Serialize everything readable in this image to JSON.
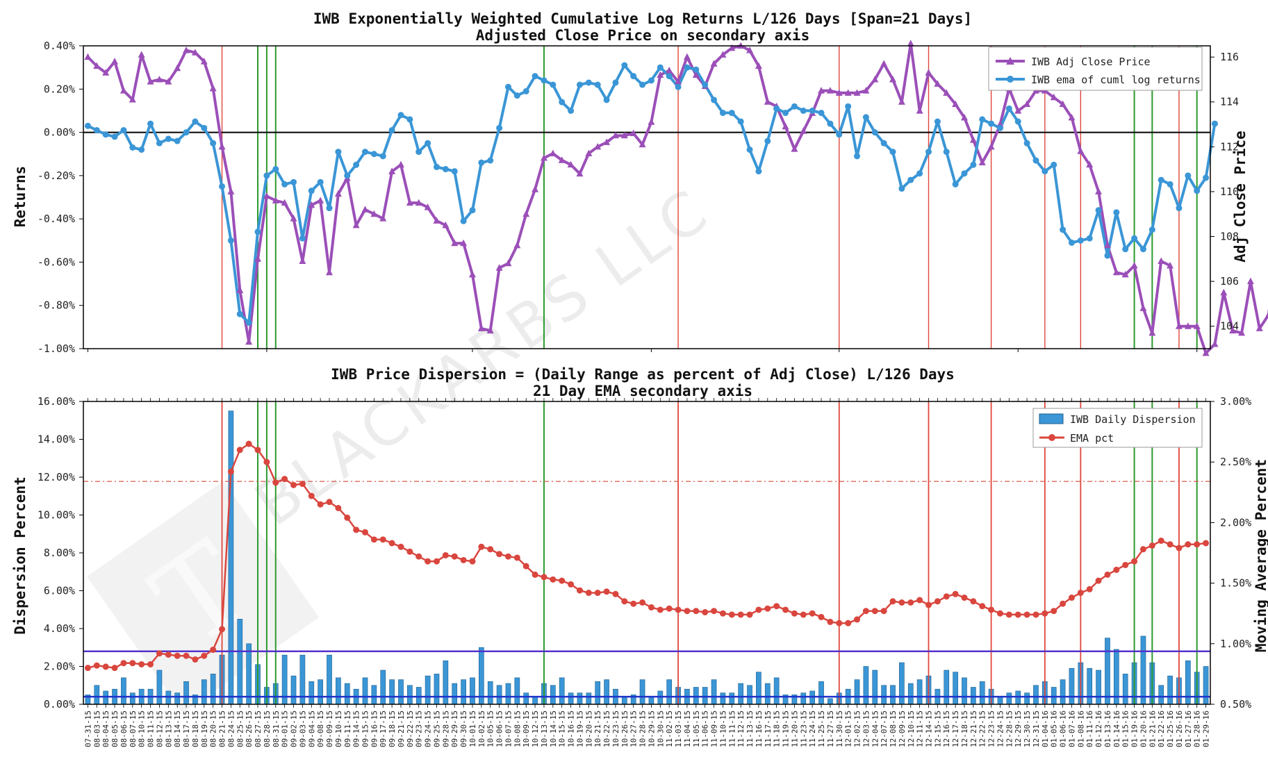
{
  "watermark": "BLACKARBS LLC",
  "chart_data": [
    {
      "type": "line",
      "title": "IWB Exponentially Weighted Cumulative Log Returns L/126 Days [Span=21 Days]",
      "subtitle": "Adjusted Close Price on secondary axis",
      "ylabel": "Returns",
      "y2label": "Adj Close Price",
      "ylim": [
        -1.0,
        0.4
      ],
      "y2lim": [
        103,
        116.5
      ],
      "yticks": [
        "0.40%",
        "0.20%",
        "0.00%",
        "-0.20%",
        "-0.40%",
        "-0.60%",
        "-0.80%",
        "-1.00%"
      ],
      "y2ticks": [
        "116",
        "114",
        "112",
        "110",
        "108",
        "106",
        "104"
      ],
      "legend": "top-right",
      "series": [
        {
          "name": "IWB Adj Close Price",
          "axis": "right",
          "color": "#9b4fb8",
          "marker": "triangle",
          "values": [
            116.0,
            115.6,
            115.3,
            115.8,
            114.5,
            114.1,
            116.1,
            114.9,
            115.0,
            114.9,
            115.5,
            116.3,
            116.2,
            115.8,
            114.6,
            112.0,
            110.0,
            105.6,
            103.3,
            107.0,
            109.8,
            109.6,
            109.5,
            108.8,
            106.9,
            109.4,
            109.6,
            106.4,
            109.9,
            110.6,
            108.5,
            109.2,
            109.0,
            108.8,
            110.9,
            111.2,
            109.5,
            109.5,
            109.3,
            108.7,
            108.5,
            107.7,
            107.7,
            106.3,
            103.9,
            103.8,
            106.6,
            106.8,
            107.6,
            109.0,
            110.1,
            111.5,
            111.7,
            111.4,
            111.2,
            110.8,
            111.7,
            112.0,
            112.2,
            112.5,
            112.5,
            112.6,
            112.1,
            113.1,
            115.2,
            115.4,
            114.9,
            116.0,
            115.2,
            114.7,
            115.7,
            116.1,
            116.4,
            116.5,
            116.3,
            115.6,
            114.0,
            113.8,
            112.9,
            111.9,
            112.7,
            113.5,
            114.5,
            114.5,
            114.4,
            114.4,
            114.4,
            114.5,
            115.0,
            115.7,
            115.0,
            114.0,
            116.6,
            113.6,
            115.3,
            114.8,
            114.4,
            113.9,
            113.3,
            112.3,
            111.3,
            112.0,
            113.0,
            114.6,
            113.6,
            113.9,
            114.5,
            114.5,
            114.2,
            113.9,
            113.3,
            111.8,
            111.2,
            110.0,
            107.6,
            106.4,
            106.3,
            106.7,
            104.8,
            103.7,
            106.9,
            106.7,
            104.0,
            104.0,
            104.0,
            102.8,
            103.2,
            105.5,
            103.8,
            103.7,
            106.0,
            103.9,
            104.5,
            107.4
          ]
        },
        {
          "name": "IWB ema of cuml log returns",
          "axis": "left",
          "color": "#3a96d6",
          "marker": "circle",
          "values": [
            0.03,
            0.01,
            -0.01,
            -0.02,
            0.01,
            -0.07,
            -0.08,
            0.04,
            -0.05,
            -0.03,
            -0.04,
            0.0,
            0.05,
            0.02,
            -0.05,
            -0.25,
            -0.5,
            -0.84,
            -0.88,
            -0.46,
            -0.2,
            -0.17,
            -0.24,
            -0.23,
            -0.49,
            -0.27,
            -0.23,
            -0.35,
            -0.09,
            -0.2,
            -0.15,
            -0.09,
            -0.1,
            -0.11,
            0.01,
            0.08,
            0.06,
            -0.09,
            -0.05,
            -0.16,
            -0.17,
            -0.18,
            -0.41,
            -0.36,
            -0.14,
            -0.13,
            0.02,
            0.21,
            0.17,
            0.19,
            0.26,
            0.24,
            0.22,
            0.14,
            0.1,
            0.22,
            0.23,
            0.22,
            0.15,
            0.23,
            0.31,
            0.26,
            0.22,
            0.24,
            0.3,
            0.26,
            0.21,
            0.3,
            0.29,
            0.22,
            0.15,
            0.09,
            0.09,
            0.05,
            -0.08,
            -0.18,
            -0.04,
            0.11,
            0.09,
            0.12,
            0.1,
            0.1,
            0.09,
            0.04,
            -0.01,
            0.12,
            -0.11,
            0.07,
            0.0,
            -0.05,
            -0.09,
            -0.26,
            -0.22,
            -0.19,
            -0.09,
            0.05,
            -0.09,
            -0.24,
            -0.19,
            -0.15,
            0.06,
            0.04,
            0.02,
            0.11,
            0.05,
            -0.05,
            -0.13,
            -0.18,
            -0.15,
            -0.45,
            -0.51,
            -0.5,
            -0.49,
            -0.36,
            -0.57,
            -0.37,
            -0.54,
            -0.49,
            -0.54,
            -0.45,
            -0.22,
            -0.24,
            -0.35,
            -0.2,
            -0.27,
            -0.21,
            0.04
          ]
        }
      ],
      "red_vlines_idx": [
        15,
        66,
        84,
        94,
        101,
        107,
        111,
        122
      ],
      "green_vlines_idx": [
        19,
        20,
        21,
        51,
        117,
        119,
        124
      ]
    },
    {
      "type": "bar",
      "title": "IWB Price Dispersion = (Daily Range as percent of Adj Close) L/126 Days",
      "subtitle": "21 Day EMA secondary axis",
      "ylabel": "Dispersion Percent",
      "y2label": "Moving Average Percent",
      "ylim": [
        0,
        16
      ],
      "y2lim": [
        0.5,
        3.0
      ],
      "yticks": [
        "16.00%",
        "14.00%",
        "12.00%",
        "10.00%",
        "8.00%",
        "6.00%",
        "4.00%",
        "2.00%",
        "0.00%"
      ],
      "y2ticks": [
        "3.00%",
        "2.50%",
        "2.00%",
        "1.50%",
        "1.00%",
        "0.50%"
      ],
      "legend": "top-right",
      "hlines": [
        {
          "axis": "left",
          "value": 2.8,
          "color": "#5533cc"
        },
        {
          "axis": "left",
          "value": 0.4,
          "color": "#2233cc"
        },
        {
          "axis": "right",
          "value": 2.34,
          "color": "#d9584a",
          "style": "dash-dot"
        }
      ],
      "x_dates": [
        "07-31-15",
        "08-03-15",
        "08-04-15",
        "08-05-15",
        "08-06-15",
        "08-07-15",
        "08-10-15",
        "08-11-15",
        "08-12-15",
        "08-13-15",
        "08-14-15",
        "08-17-15",
        "08-18-15",
        "08-19-15",
        "08-20-15",
        "08-21-15",
        "08-24-15",
        "08-25-15",
        "08-26-15",
        "08-27-15",
        "08-28-15",
        "08-31-15",
        "09-01-15",
        "09-02-15",
        "09-03-15",
        "09-04-15",
        "09-08-15",
        "09-09-15",
        "09-10-15",
        "09-11-15",
        "09-14-15",
        "09-15-15",
        "09-16-15",
        "09-17-15",
        "09-18-15",
        "09-21-15",
        "09-22-15",
        "09-23-15",
        "09-24-15",
        "09-25-15",
        "09-28-15",
        "09-29-15",
        "09-30-15",
        "10-01-15",
        "10-02-15",
        "10-05-15",
        "10-06-15",
        "10-07-15",
        "10-08-15",
        "10-09-15",
        "10-12-15",
        "10-13-15",
        "10-14-15",
        "10-15-15",
        "10-16-15",
        "10-19-15",
        "10-20-15",
        "10-21-15",
        "10-22-15",
        "10-23-15",
        "10-26-15",
        "10-27-15",
        "10-28-15",
        "10-29-15",
        "10-30-15",
        "11-02-15",
        "11-03-15",
        "11-04-15",
        "11-05-15",
        "11-06-15",
        "11-09-15",
        "11-10-15",
        "11-11-15",
        "11-12-15",
        "11-13-15",
        "11-16-15",
        "11-17-15",
        "11-18-15",
        "11-19-15",
        "11-20-15",
        "11-23-15",
        "11-24-15",
        "11-25-15",
        "11-27-15",
        "11-30-15",
        "12-01-15",
        "12-02-15",
        "12-03-15",
        "12-04-15",
        "12-07-15",
        "12-08-15",
        "12-09-15",
        "12-10-15",
        "12-11-15",
        "12-14-15",
        "12-15-15",
        "12-16-15",
        "12-17-15",
        "12-18-15",
        "12-21-15",
        "12-22-15",
        "12-23-15",
        "12-24-15",
        "12-28-15",
        "12-29-15",
        "12-30-15",
        "12-31-15",
        "01-04-16",
        "01-05-16",
        "01-06-16",
        "01-07-16",
        "01-08-16",
        "01-11-16",
        "01-12-16",
        "01-13-16",
        "01-14-16",
        "01-15-16",
        "01-19-16",
        "01-20-16",
        "01-21-16",
        "01-22-16",
        "01-25-16",
        "01-26-16",
        "01-27-16",
        "01-28-16",
        "01-29-16"
      ],
      "series": [
        {
          "name": "IWB Daily Dispersion",
          "axis": "left",
          "color": "#3a96d6",
          "values": [
            0.5,
            1.0,
            0.7,
            0.8,
            1.4,
            0.6,
            0.8,
            0.8,
            1.8,
            0.7,
            0.6,
            1.2,
            0.5,
            1.3,
            1.6,
            2.6,
            15.5,
            4.5,
            3.2,
            2.1,
            0.9,
            1.1,
            2.6,
            1.5,
            2.6,
            1.2,
            1.3,
            2.6,
            1.4,
            1.1,
            0.8,
            1.4,
            1.0,
            1.8,
            1.3,
            1.3,
            1.0,
            0.9,
            1.5,
            1.6,
            2.3,
            1.1,
            1.3,
            1.4,
            3.0,
            1.2,
            1.0,
            1.1,
            1.4,
            0.6,
            0.4,
            1.1,
            1.0,
            1.4,
            0.6,
            0.6,
            0.6,
            1.2,
            1.3,
            0.8,
            0.4,
            0.5,
            1.3,
            0.4,
            0.7,
            1.3,
            0.9,
            0.8,
            0.9,
            0.9,
            1.3,
            0.6,
            0.6,
            1.1,
            1.0,
            1.7,
            1.1,
            1.4,
            0.5,
            0.5,
            0.6,
            0.7,
            1.2,
            0.3,
            0.6,
            0.8,
            1.3,
            2.0,
            1.8,
            1.0,
            1.0,
            2.2,
            1.1,
            1.3,
            1.5,
            0.8,
            1.8,
            1.7,
            1.4,
            0.9,
            1.2,
            0.8,
            0.4,
            0.6,
            0.7,
            0.6,
            1.0,
            1.2,
            0.9,
            1.3,
            1.9,
            2.2,
            1.9,
            1.8,
            3.5,
            2.9,
            1.6,
            2.2,
            3.6,
            2.2,
            1.0,
            1.5,
            1.4,
            2.3,
            1.7,
            2.0
          ]
        },
        {
          "name": "EMA pct",
          "axis": "right",
          "color": "#d9463e",
          "marker": "circle",
          "values": [
            0.8,
            0.82,
            0.81,
            0.8,
            0.84,
            0.84,
            0.83,
            0.83,
            0.92,
            0.91,
            0.9,
            0.9,
            0.87,
            0.9,
            0.95,
            1.12,
            2.42,
            2.6,
            2.65,
            2.6,
            2.5,
            2.33,
            2.36,
            2.31,
            2.32,
            2.22,
            2.15,
            2.17,
            2.12,
            2.04,
            1.94,
            1.92,
            1.86,
            1.86,
            1.83,
            1.8,
            1.76,
            1.72,
            1.68,
            1.68,
            1.73,
            1.72,
            1.69,
            1.68,
            1.8,
            1.78,
            1.74,
            1.72,
            1.71,
            1.64,
            1.57,
            1.55,
            1.53,
            1.52,
            1.49,
            1.44,
            1.42,
            1.42,
            1.43,
            1.41,
            1.35,
            1.33,
            1.34,
            1.3,
            1.28,
            1.29,
            1.28,
            1.27,
            1.27,
            1.26,
            1.27,
            1.25,
            1.24,
            1.24,
            1.24,
            1.28,
            1.29,
            1.31,
            1.28,
            1.25,
            1.24,
            1.25,
            1.22,
            1.18,
            1.17,
            1.17,
            1.2,
            1.27,
            1.27,
            1.27,
            1.35,
            1.34,
            1.34,
            1.36,
            1.32,
            1.35,
            1.39,
            1.41,
            1.38,
            1.35,
            1.31,
            1.28,
            1.25,
            1.24,
            1.24,
            1.24,
            1.24,
            1.25,
            1.27,
            1.33,
            1.38,
            1.42,
            1.45,
            1.52,
            1.57,
            1.61,
            1.65,
            1.68,
            1.78,
            1.81,
            1.85,
            1.82,
            1.79,
            1.82,
            1.82,
            1.83
          ]
        }
      ],
      "red_vlines_idx": [
        15,
        66,
        84,
        94,
        101,
        107,
        111,
        122
      ],
      "green_vlines_idx": [
        19,
        20,
        21,
        51,
        117,
        119,
        124
      ]
    }
  ]
}
